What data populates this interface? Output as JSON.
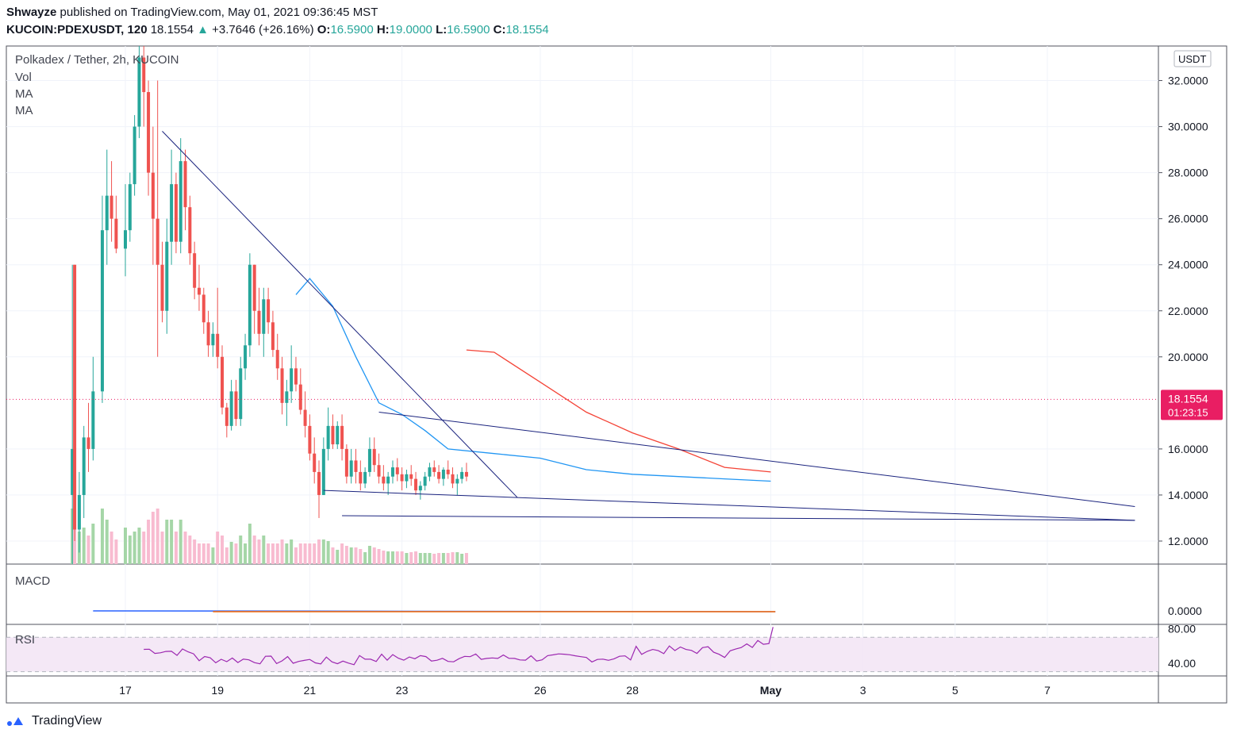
{
  "header": {
    "publisher": "Shwayze",
    "published_text": "published on TradingView.com, May 01, 2021 09:36:45 MST",
    "symbol": "KUCOIN:PDEXUSDT, 120",
    "last": "18.1554",
    "change_arrow": "▲",
    "change": "+3.7646 (+26.16%)",
    "o_label": "O:",
    "o_value": "16.5900",
    "h_label": "H:",
    "h_value": "19.0000",
    "l_label": "L:",
    "l_value": "16.5900",
    "c_label": "C:",
    "c_value": "18.1554"
  },
  "legend": {
    "title": "Polkadex / Tether, 2h, KUCOIN",
    "vol": "Vol",
    "ma1": "MA",
    "ma2": "MA",
    "macd": "MACD",
    "rsi": "RSI"
  },
  "footer": {
    "brand": "TradingView"
  },
  "colors": {
    "up": "#26a69a",
    "down": "#ef5350",
    "ma_fast": "#2196f3",
    "ma_slow": "#f44336",
    "trendline": "#1a237e",
    "rsi": "#9c27b0",
    "price_tag": "#e91e63"
  },
  "chart_data": {
    "type": "candlestick",
    "title": "Polkadex / Tether, 2h, KUCOIN",
    "currency": "USDT",
    "price_axis": {
      "range": [
        11,
        33.5
      ],
      "ticks": [
        "32.0000",
        "30.0000",
        "28.0000",
        "26.0000",
        "24.0000",
        "22.0000",
        "20.0000",
        "16.0000",
        "14.0000",
        "12.0000"
      ]
    },
    "last_price": {
      "value": 18.1554,
      "label": "18.1554",
      "countdown": "01:23:15"
    },
    "time_axis": {
      "ticks": [
        {
          "label": "17",
          "day": 17
        },
        {
          "label": "19",
          "day": 19
        },
        {
          "label": "21",
          "day": 21
        },
        {
          "label": "23",
          "day": 23
        },
        {
          "label": "26",
          "day": 26
        },
        {
          "label": "28",
          "day": 28
        },
        {
          "label": "May",
          "day": 31,
          "bold": true
        },
        {
          "label": "3",
          "day": 33
        },
        {
          "label": "5",
          "day": 35
        },
        {
          "label": "7",
          "day": 37
        }
      ]
    },
    "candles_estimated": [
      [
        15.85,
        14,
        24,
        11,
        16
      ],
      [
        15.9,
        24,
        24,
        12,
        12.5
      ],
      [
        16.0,
        12.5,
        15,
        11.5,
        14
      ],
      [
        16.1,
        14,
        17,
        13,
        16.5
      ],
      [
        16.2,
        16.5,
        18,
        15,
        16
      ],
      [
        16.3,
        16,
        20,
        15.5,
        18.5
      ],
      [
        16.5,
        18.5,
        27,
        18,
        25.5
      ],
      [
        16.6,
        25.5,
        29,
        24,
        27
      ],
      [
        16.7,
        27,
        28.5,
        25,
        26
      ],
      [
        16.8,
        26,
        27,
        24.5,
        24.7
      ],
      [
        17.0,
        24.7,
        27.5,
        23.5,
        25.5
      ],
      [
        17.1,
        25.5,
        28,
        25,
        27.5
      ],
      [
        17.2,
        27.5,
        30.5,
        27,
        30
      ],
      [
        17.3,
        30,
        33.5,
        29.5,
        33
      ],
      [
        17.4,
        33,
        33.5,
        30,
        31.5
      ],
      [
        17.5,
        31.5,
        32,
        27,
        28
      ],
      [
        17.6,
        28,
        30,
        24,
        26
      ],
      [
        17.7,
        26,
        32,
        20,
        24
      ],
      [
        17.8,
        24,
        25,
        21.5,
        22
      ],
      [
        17.9,
        22,
        26,
        21,
        25
      ],
      [
        18.0,
        25,
        29,
        24,
        27.5
      ],
      [
        18.1,
        27.5,
        28,
        24.5,
        25
      ],
      [
        18.2,
        25,
        29.5,
        24.5,
        28.5
      ],
      [
        18.3,
        28.5,
        29,
        25.5,
        26.5
      ],
      [
        18.4,
        26.5,
        27,
        24,
        24.5
      ],
      [
        18.5,
        24.5,
        25,
        22.5,
        23
      ],
      [
        18.6,
        23,
        24,
        22,
        22.7
      ],
      [
        18.7,
        22.7,
        23,
        21,
        21.5
      ],
      [
        18.8,
        21.5,
        22,
        20,
        20.5
      ],
      [
        18.9,
        20.5,
        21.5,
        20,
        21
      ],
      [
        19.0,
        21,
        23,
        19.5,
        20
      ],
      [
        19.1,
        20,
        20.5,
        17.5,
        17.8
      ],
      [
        19.2,
        17.8,
        18,
        16.5,
        17
      ],
      [
        19.3,
        17,
        19,
        16.8,
        18.5
      ],
      [
        19.4,
        18.5,
        19,
        17,
        17.3
      ],
      [
        19.5,
        17.3,
        20,
        17,
        19.5
      ],
      [
        19.6,
        19.5,
        21,
        19,
        20.5
      ],
      [
        19.7,
        20.5,
        24.5,
        20,
        24
      ],
      [
        19.8,
        24,
        24,
        21,
        22
      ],
      [
        19.9,
        22,
        23,
        20.5,
        21
      ],
      [
        20.0,
        21,
        23,
        20,
        22.5
      ],
      [
        20.1,
        22.5,
        23,
        21,
        21.5
      ],
      [
        20.2,
        21.5,
        22,
        20,
        20.3
      ],
      [
        20.3,
        20.3,
        21,
        19,
        19.5
      ],
      [
        20.4,
        19.5,
        20,
        17.5,
        18
      ],
      [
        20.5,
        18,
        19,
        17,
        18.5
      ],
      [
        20.6,
        18.5,
        20.5,
        18,
        19.5
      ],
      [
        20.7,
        19.5,
        20,
        18.5,
        18.8
      ],
      [
        20.8,
        18.8,
        19.5,
        17.5,
        17.7
      ],
      [
        20.9,
        17.7,
        18.5,
        16.5,
        17
      ],
      [
        21.0,
        17,
        17.5,
        15.5,
        15.8
      ],
      [
        21.1,
        15.8,
        16.5,
        14.5,
        15
      ],
      [
        21.2,
        15,
        15.5,
        13,
        14
      ],
      [
        21.3,
        14,
        16.5,
        14,
        16
      ],
      [
        21.4,
        16,
        17.8,
        15.5,
        17
      ],
      [
        21.5,
        17,
        17.5,
        16,
        16.2
      ],
      [
        21.6,
        16.2,
        17.2,
        16,
        17
      ],
      [
        21.7,
        17,
        17.5,
        15.5,
        16
      ],
      [
        21.8,
        16,
        16.2,
        14.5,
        14.8
      ],
      [
        21.9,
        14.8,
        16,
        14.5,
        15.5
      ],
      [
        22.0,
        15.5,
        16,
        14.5,
        15
      ],
      [
        22.1,
        15,
        15.5,
        14.2,
        14.5
      ],
      [
        22.2,
        14.5,
        15.2,
        14.3,
        15
      ],
      [
        22.3,
        15,
        16.5,
        14.8,
        16
      ],
      [
        22.4,
        16,
        16.5,
        15,
        15.3
      ],
      [
        22.5,
        15.3,
        15.8,
        14.5,
        14.8
      ],
      [
        22.6,
        14.8,
        15.3,
        14.2,
        14.5
      ],
      [
        22.7,
        14.5,
        15,
        14,
        14.8
      ],
      [
        22.8,
        14.8,
        15.5,
        14.5,
        15.2
      ],
      [
        22.9,
        15.2,
        15.6,
        14.6,
        14.9
      ],
      [
        23.0,
        14.9,
        15.2,
        14.2,
        14.6
      ],
      [
        23.1,
        14.6,
        15.1,
        14.3,
        14.9
      ],
      [
        23.2,
        14.9,
        15.3,
        14.4,
        14.7
      ],
      [
        23.3,
        14.7,
        15,
        14,
        14.2
      ],
      [
        23.4,
        14.2,
        14.6,
        13.8,
        14.4
      ],
      [
        23.5,
        14.4,
        15,
        14.2,
        14.8
      ],
      [
        23.6,
        14.8,
        15.4,
        14.6,
        15.2
      ],
      [
        23.7,
        15.2,
        15.5,
        14.8,
        15
      ],
      [
        23.8,
        15,
        15.3,
        14.5,
        14.7
      ],
      [
        23.9,
        14.7,
        15.2,
        14.4,
        15.1
      ],
      [
        24.0,
        15.1,
        15.5,
        14.7,
        14.9
      ],
      [
        24.1,
        14.9,
        15.2,
        14.3,
        14.5
      ],
      [
        24.2,
        14.5,
        14.9,
        14,
        14.7
      ],
      [
        24.3,
        14.7,
        15.2,
        14.5,
        15
      ],
      [
        24.4,
        15,
        15.4,
        14.6,
        14.8
      ]
    ],
    "volume_note": "volume histogram at bottom of price pane",
    "moving_averages": [
      {
        "name": "MA",
        "color": "#2196f3"
      },
      {
        "name": "MA",
        "color": "#f44336"
      }
    ],
    "macd": {
      "name": "MACD",
      "tick": "0.0000",
      "range": [
        -1,
        1
      ]
    },
    "rsi": {
      "name": "RSI",
      "ticks": [
        "80.00",
        "40.00"
      ],
      "band": [
        30,
        70
      ],
      "range": [
        25,
        85
      ]
    }
  }
}
